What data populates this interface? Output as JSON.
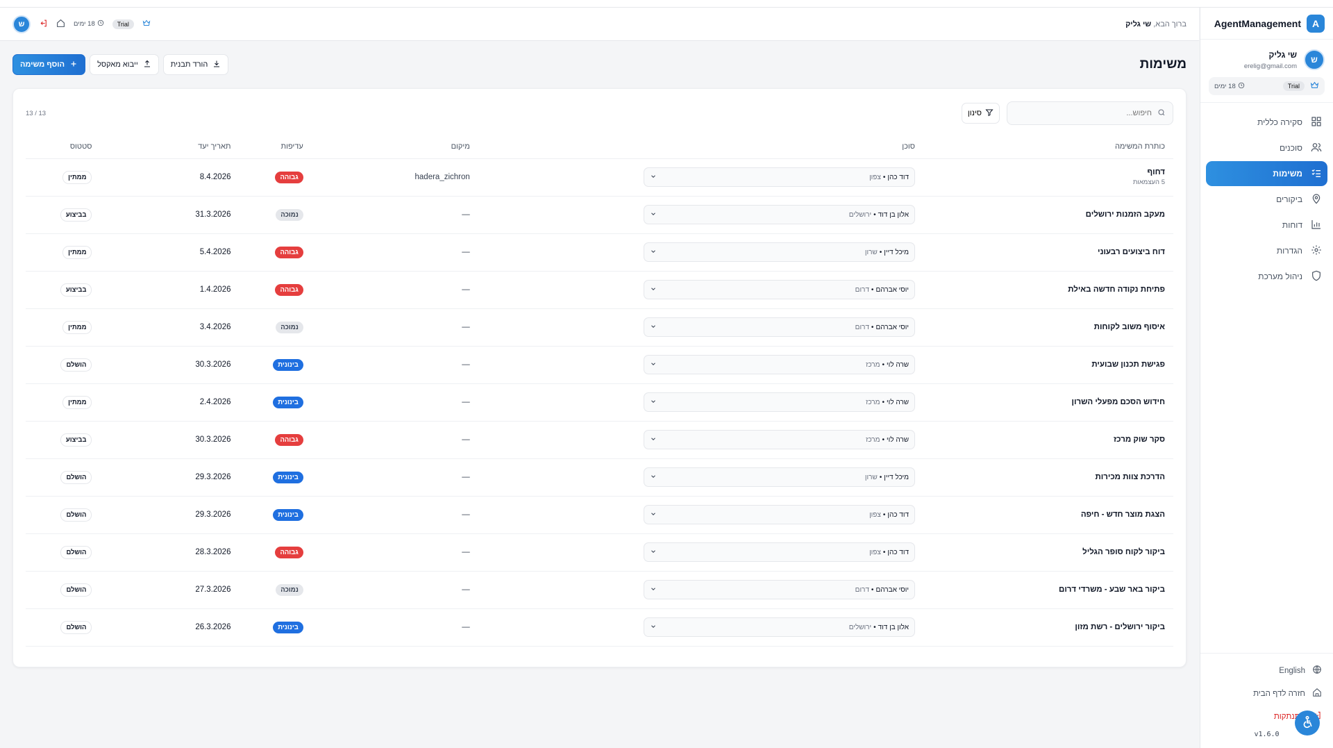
{
  "brand": {
    "name": "AgentManagement",
    "logo_letter": "A"
  },
  "user": {
    "initial": "ש",
    "name": "שי גליק",
    "email": "erelig@gmail.com",
    "plan": "Trial",
    "days_left": "18 ימים"
  },
  "topbar": {
    "welcome_prefix": "ברוך הבא,",
    "welcome_name": "שי גליק",
    "plan": "Trial",
    "days_left": "18 ימים",
    "avatar_initial": "ש"
  },
  "sidebar": {
    "items": [
      {
        "label": "סקירה כללית",
        "icon": "grid-icon"
      },
      {
        "label": "סוכנים",
        "icon": "users-icon"
      },
      {
        "label": "משימות",
        "icon": "list-check-icon",
        "active": true
      },
      {
        "label": "ביקורים",
        "icon": "map-pin-icon"
      },
      {
        "label": "דוחות",
        "icon": "bar-chart-icon"
      },
      {
        "label": "הגדרות",
        "icon": "gear-icon"
      },
      {
        "label": "ניהול מערכת",
        "icon": "shield-icon"
      }
    ],
    "bottom": {
      "language": "English",
      "home": "חזרה לדף הבית",
      "logout": "התנתקות",
      "version": "v1.6.0"
    }
  },
  "page": {
    "title": "משימות",
    "actions": {
      "add_task": "הוסף משימה",
      "import_excel": "ייבוא מאקסל",
      "download_template": "הורד תבנית"
    },
    "search_placeholder": "חיפוש...",
    "filter_label": "סינון",
    "count": "13 / 13"
  },
  "table": {
    "headers": {
      "title": "כותרת המשימה",
      "agent": "סוכן",
      "location": "מיקום",
      "priority": "עדיפות",
      "due": "תאריך יעד",
      "status": "סטטוס"
    },
    "rows": [
      {
        "title": "דחוף",
        "sub": "5 העצמאות",
        "agent": "דוד כהן",
        "region": "צפון",
        "location": "hadera_zichron",
        "priority": "גבוהה",
        "due": "8.4.2026",
        "status": "ממתין"
      },
      {
        "title": "מעקב הזמנות ירושלים",
        "sub": "",
        "agent": "אלון בן דוד",
        "region": "ירושלים",
        "location": "—",
        "priority": "נמוכה",
        "due": "31.3.2026",
        "status": "בביצוע"
      },
      {
        "title": "דוח ביצועים רבעוני",
        "sub": "",
        "agent": "מיכל דיין",
        "region": "שרון",
        "location": "—",
        "priority": "גבוהה",
        "due": "5.4.2026",
        "status": "ממתין"
      },
      {
        "title": "פתיחת נקודה חדשה באילת",
        "sub": "",
        "agent": "יוסי אברהם",
        "region": "דרום",
        "location": "—",
        "priority": "גבוהה",
        "due": "1.4.2026",
        "status": "בביצוע"
      },
      {
        "title": "איסוף משוב לקוחות",
        "sub": "",
        "agent": "יוסי אברהם",
        "region": "דרום",
        "location": "—",
        "priority": "נמוכה",
        "due": "3.4.2026",
        "status": "ממתין"
      },
      {
        "title": "פגישת תכנון שבועית",
        "sub": "",
        "agent": "שרה לוי",
        "region": "מרכז",
        "location": "—",
        "priority": "בינונית",
        "due": "30.3.2026",
        "status": "הושלם"
      },
      {
        "title": "חידוש הסכם מפעלי השרון",
        "sub": "",
        "agent": "שרה לוי",
        "region": "מרכז",
        "location": "—",
        "priority": "בינונית",
        "due": "2.4.2026",
        "status": "ממתין"
      },
      {
        "title": "סקר שוק מרכז",
        "sub": "",
        "agent": "שרה לוי",
        "region": "מרכז",
        "location": "—",
        "priority": "גבוהה",
        "due": "30.3.2026",
        "status": "בביצוע"
      },
      {
        "title": "הדרכת צוות מכירות",
        "sub": "",
        "agent": "מיכל דיין",
        "region": "שרון",
        "location": "—",
        "priority": "בינונית",
        "due": "29.3.2026",
        "status": "הושלם"
      },
      {
        "title": "הצגת מוצר חדש - חיפה",
        "sub": "",
        "agent": "דוד כהן",
        "region": "צפון",
        "location": "—",
        "priority": "בינונית",
        "due": "29.3.2026",
        "status": "הושלם"
      },
      {
        "title": "ביקור לקוח סופר הגליל",
        "sub": "",
        "agent": "דוד כהן",
        "region": "צפון",
        "location": "—",
        "priority": "גבוהה",
        "due": "28.3.2026",
        "status": "הושלם"
      },
      {
        "title": "ביקור באר שבע - משרדי דרום",
        "sub": "",
        "agent": "יוסי אברהם",
        "region": "דרום",
        "location": "—",
        "priority": "נמוכה",
        "due": "27.3.2026",
        "status": "הושלם"
      },
      {
        "title": "ביקור ירושלים - רשת מזון",
        "sub": "",
        "agent": "אלון בן דוד",
        "region": "ירושלים",
        "location": "—",
        "priority": "בינונית",
        "due": "26.3.2026",
        "status": "הושלם"
      }
    ]
  },
  "colors": {
    "accent": "#2a86d9",
    "priority_high": "#e53e3e",
    "priority_medium": "#1f6fe0",
    "priority_low": "#e5e7eb"
  }
}
